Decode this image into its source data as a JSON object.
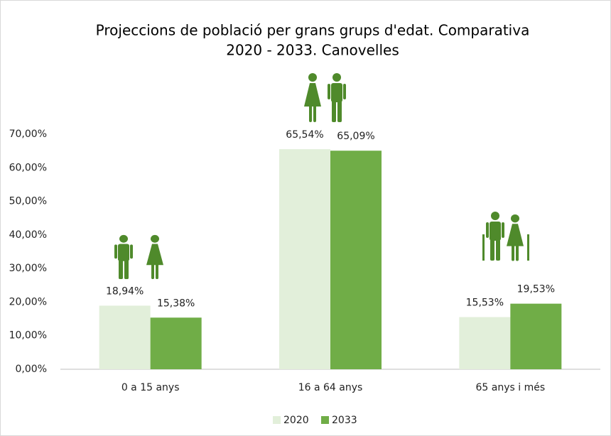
{
  "chart_data": {
    "type": "bar",
    "title": [
      "Projeccions de població per grans grups d'edat. Comparativa",
      "2020 - 2033. Canovelles"
    ],
    "categories": [
      "0 a 15 anys",
      "16 a 64 anys",
      "65 anys i més"
    ],
    "series": [
      {
        "name": "2020",
        "color": "#e2efda",
        "values": [
          18.94,
          65.54,
          15.53
        ],
        "value_labels": [
          "18,94%",
          "65,54%",
          "15,53%"
        ]
      },
      {
        "name": "2033",
        "color": "#70ad47",
        "values": [
          15.38,
          65.09,
          19.53
        ],
        "value_labels": [
          "15,38%",
          "65,09%",
          "19,53%"
        ]
      }
    ],
    "ylim": [
      0,
      70
    ],
    "yticks": [
      {
        "value": 0,
        "label": "0,00%"
      },
      {
        "value": 10,
        "label": "10,00%"
      },
      {
        "value": 20,
        "label": "20,00%"
      },
      {
        "value": 30,
        "label": "30,00%"
      },
      {
        "value": 40,
        "label": "40,00%"
      },
      {
        "value": 50,
        "label": "50,00%"
      },
      {
        "value": 60,
        "label": "60,00%"
      },
      {
        "value": 70,
        "label": "70,00%"
      }
    ],
    "grid": false,
    "legend": "bottom"
  }
}
